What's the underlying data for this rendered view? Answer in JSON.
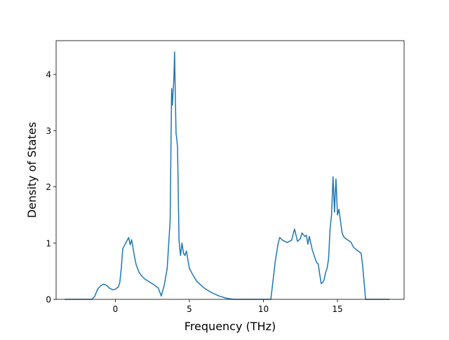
{
  "chart_data": {
    "type": "line",
    "title": "",
    "xlabel": "Frequency (THz)",
    "ylabel": "Density of States",
    "xlim": [
      -4.0,
      19.5
    ],
    "ylim": [
      0,
      4.6
    ],
    "xticks": [
      0,
      5,
      10,
      15
    ],
    "yticks": [
      0,
      1,
      2,
      3,
      4
    ],
    "grid": false,
    "series_color": "#1f77b4",
    "series": [
      {
        "x": [
          -3.4,
          -2.5,
          -1.6,
          -1.4,
          -1.2,
          -1.0,
          -0.8,
          -0.6,
          -0.4,
          -0.2,
          0.0,
          0.2,
          0.3,
          0.4,
          0.5,
          0.6,
          0.7,
          0.8,
          0.9,
          1.0,
          1.1,
          1.2,
          1.3,
          1.4,
          1.6,
          1.8,
          2.0,
          2.3,
          2.6,
          2.9,
          3.1,
          3.3,
          3.5,
          3.7,
          3.8,
          3.85,
          3.9,
          3.95,
          4.0,
          4.05,
          4.1,
          4.15,
          4.2,
          4.3,
          4.4,
          4.5,
          4.6,
          4.7,
          4.8,
          4.9,
          5.0,
          5.2,
          5.5,
          6.0,
          6.5,
          7.0,
          7.5,
          8.0,
          10.5,
          10.7,
          10.8,
          11.0,
          11.1,
          11.3,
          11.6,
          11.9,
          12.1,
          12.3,
          12.5,
          12.6,
          12.8,
          12.9,
          13.0,
          13.1,
          13.3,
          13.5,
          13.6,
          13.7,
          13.8,
          13.9,
          14.0,
          14.1,
          14.2,
          14.3,
          14.4,
          14.5,
          14.6,
          14.7,
          14.8,
          14.85,
          14.9,
          15.0,
          15.05,
          15.1,
          15.2,
          15.3,
          15.4,
          15.6,
          15.9,
          16.1,
          16.3,
          16.6,
          16.7,
          16.8,
          16.9,
          18.5
        ],
        "y": [
          0,
          0,
          0,
          0.05,
          0.18,
          0.24,
          0.27,
          0.25,
          0.2,
          0.17,
          0.18,
          0.22,
          0.3,
          0.55,
          0.9,
          0.95,
          1.0,
          1.05,
          1.1,
          0.97,
          1.06,
          0.9,
          0.75,
          0.62,
          0.48,
          0.41,
          0.36,
          0.31,
          0.26,
          0.2,
          0.06,
          0.25,
          0.55,
          1.4,
          3.75,
          3.45,
          3.7,
          3.9,
          4.4,
          3.6,
          2.95,
          2.85,
          2.7,
          1.05,
          0.78,
          1.0,
          0.82,
          0.78,
          0.86,
          0.7,
          0.55,
          0.45,
          0.32,
          0.2,
          0.12,
          0.06,
          0.02,
          0,
          0,
          0.45,
          0.68,
          1.0,
          1.1,
          1.05,
          1.01,
          1.05,
          1.25,
          1.03,
          1.08,
          1.18,
          1.12,
          1.14,
          0.98,
          1.12,
          0.88,
          0.72,
          0.65,
          0.63,
          0.45,
          0.28,
          0.3,
          0.35,
          0.48,
          0.55,
          0.72,
          1.25,
          1.5,
          2.18,
          1.55,
          1.9,
          2.14,
          1.5,
          1.55,
          1.6,
          1.4,
          1.2,
          1.12,
          1.07,
          1.02,
          0.92,
          0.88,
          0.82,
          0.6,
          0.3,
          0,
          0
        ]
      }
    ]
  }
}
